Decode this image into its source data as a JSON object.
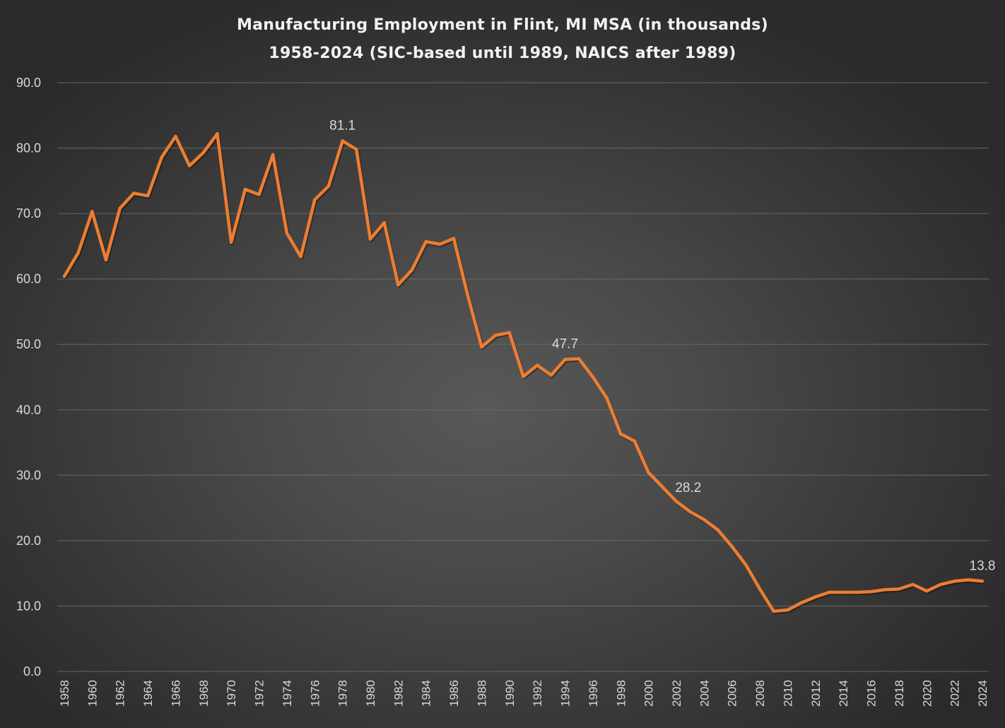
{
  "chart_data": {
    "type": "line",
    "title": "Manufacturing Employment in Flint, MI MSA (in thousands)",
    "subtitle": "1958-2024 (SIC-based until 1989, NAICS after 1989)",
    "xlabel": "",
    "ylabel": "",
    "ylim": [
      0,
      90
    ],
    "yticks": [
      "0.0",
      "10.0",
      "20.0",
      "30.0",
      "40.0",
      "50.0",
      "60.0",
      "70.0",
      "80.0",
      "90.0"
    ],
    "ytick_values": [
      0,
      10,
      20,
      30,
      40,
      50,
      60,
      70,
      80,
      90
    ],
    "xlim": [
      1958,
      2024
    ],
    "xticks": [
      "1958",
      "1960",
      "1962",
      "1964",
      "1966",
      "1968",
      "1970",
      "1972",
      "1974",
      "1976",
      "1978",
      "1980",
      "1982",
      "1984",
      "1986",
      "1988",
      "1990",
      "1992",
      "1994",
      "1996",
      "1998",
      "2000",
      "2002",
      "2004",
      "2006",
      "2008",
      "2010",
      "2012",
      "2014",
      "2016",
      "2018",
      "2020",
      "2022",
      "2024"
    ],
    "grid": true,
    "legend": "none",
    "x": [
      1958,
      1959,
      1960,
      1961,
      1962,
      1963,
      1964,
      1965,
      1966,
      1967,
      1968,
      1969,
      1970,
      1971,
      1972,
      1973,
      1974,
      1975,
      1976,
      1977,
      1978,
      1979,
      1980,
      1981,
      1982,
      1983,
      1984,
      1985,
      1986,
      1987,
      1988,
      1989,
      1990,
      1991,
      1992,
      1993,
      1994,
      1995,
      1996,
      1997,
      1998,
      1999,
      2000,
      2001,
      2002,
      2003,
      2004,
      2005,
      2006,
      2007,
      2008,
      2009,
      2010,
      2011,
      2012,
      2013,
      2014,
      2015,
      2016,
      2017,
      2018,
      2019,
      2020,
      2021,
      2022,
      2023,
      2024
    ],
    "series": [
      {
        "name": "Manufacturing Employment (thousands)",
        "color": "#ED7D31",
        "values": [
          60.4,
          64.0,
          70.3,
          62.9,
          70.8,
          73.1,
          72.7,
          78.6,
          81.8,
          77.3,
          79.3,
          82.2,
          65.6,
          73.7,
          72.9,
          79.0,
          67.0,
          63.4,
          72.1,
          74.2,
          81.1,
          79.8,
          66.1,
          68.6,
          59.1,
          61.4,
          65.7,
          65.3,
          66.2,
          57.5,
          49.6,
          51.4,
          51.8,
          45.1,
          46.8,
          45.3,
          47.7,
          47.8,
          45.0,
          41.8,
          36.3,
          35.2,
          30.4,
          28.2,
          26.0,
          24.4,
          23.2,
          21.6,
          19.1,
          16.3,
          12.6,
          9.2,
          9.4,
          10.5,
          11.4,
          12.1,
          12.1,
          12.1,
          12.2,
          12.5,
          12.6,
          13.3,
          12.3,
          13.3,
          13.8,
          14.0,
          13.8
        ]
      }
    ],
    "annotations": [
      {
        "x": 1978,
        "text": "81.1",
        "position": "above"
      },
      {
        "x": 1994,
        "text": "47.7",
        "position": "above"
      },
      {
        "x": 2001,
        "text": "28.2",
        "position": "right"
      },
      {
        "x": 2024,
        "text": "13.8",
        "position": "above"
      }
    ]
  }
}
